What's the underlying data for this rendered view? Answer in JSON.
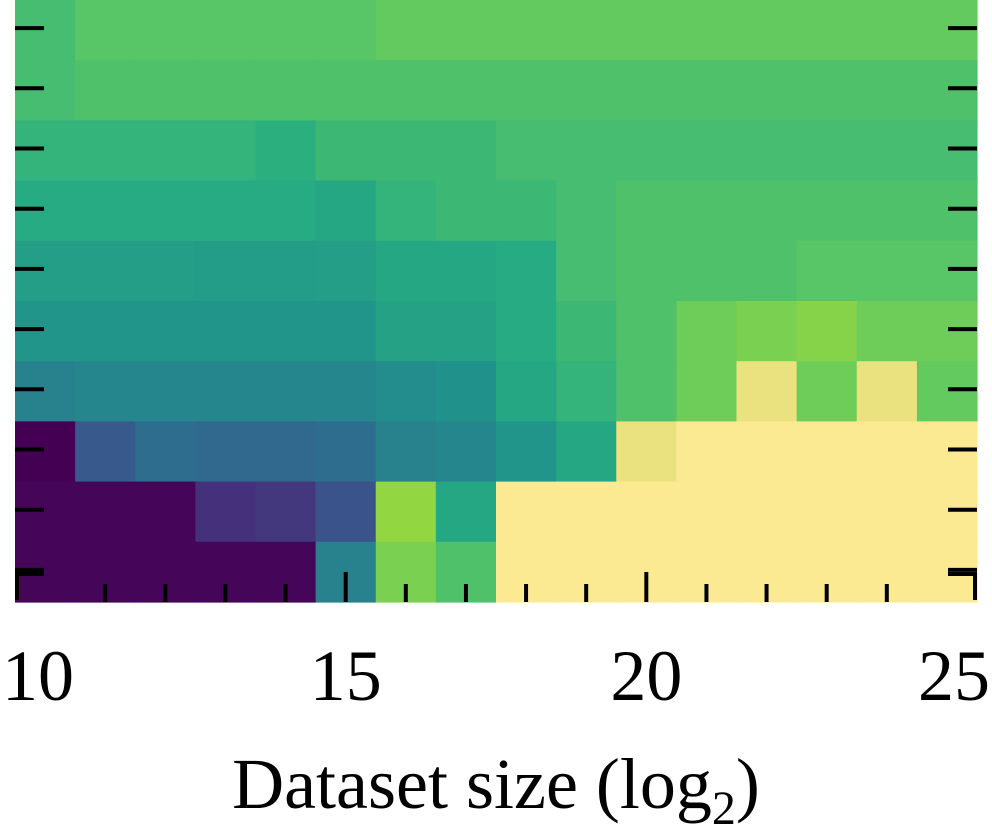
{
  "chart_data": {
    "type": "heatmap",
    "title": "",
    "xlabel_main": "Dataset size (log",
    "xlabel_sub": "2",
    "xlabel_close": ")",
    "ylabel": "",
    "x": [
      10,
      11,
      12,
      13,
      14,
      15,
      16,
      17,
      18,
      19,
      20,
      21,
      22,
      23,
      24,
      25
    ],
    "xlim": [
      9.5,
      25.5
    ],
    "rows": 10,
    "xticks": [
      10,
      15,
      20,
      25
    ],
    "xtick_labels": [
      "10",
      "15",
      "20",
      "25"
    ],
    "colormap": "viridis",
    "values_top_to_bottom": [
      [
        0.7,
        0.74,
        0.74,
        0.74,
        0.74,
        0.74,
        0.76,
        0.76,
        0.76,
        0.76,
        0.76,
        0.76,
        0.76,
        0.76,
        0.76,
        0.76
      ],
      [
        0.7,
        0.72,
        0.72,
        0.72,
        0.72,
        0.72,
        0.72,
        0.72,
        0.72,
        0.72,
        0.72,
        0.72,
        0.72,
        0.72,
        0.72,
        0.72
      ],
      [
        0.66,
        0.66,
        0.66,
        0.66,
        0.64,
        0.68,
        0.68,
        0.68,
        0.7,
        0.7,
        0.7,
        0.7,
        0.7,
        0.7,
        0.7,
        0.7
      ],
      [
        0.62,
        0.62,
        0.62,
        0.62,
        0.62,
        0.6,
        0.66,
        0.68,
        0.68,
        0.7,
        0.72,
        0.72,
        0.72,
        0.72,
        0.72,
        0.72
      ],
      [
        0.56,
        0.56,
        0.56,
        0.55,
        0.55,
        0.56,
        0.6,
        0.6,
        0.62,
        0.7,
        0.72,
        0.72,
        0.72,
        0.74,
        0.74,
        0.74
      ],
      [
        0.52,
        0.52,
        0.52,
        0.52,
        0.52,
        0.52,
        0.58,
        0.58,
        0.62,
        0.68,
        0.72,
        0.78,
        0.8,
        0.82,
        0.78,
        0.78
      ],
      [
        0.44,
        0.46,
        0.46,
        0.46,
        0.46,
        0.46,
        0.48,
        0.5,
        0.6,
        0.66,
        0.72,
        0.78,
        0.88,
        0.78,
        0.88,
        0.76
      ],
      [
        0.0,
        0.28,
        0.36,
        0.34,
        0.34,
        0.36,
        0.44,
        0.46,
        0.52,
        0.6,
        0.9,
        0.96,
        0.96,
        0.96,
        0.96,
        0.96
      ],
      [
        0.02,
        0.02,
        0.02,
        0.16,
        0.18,
        0.26,
        0.84,
        0.6,
        0.96,
        0.96,
        1.0,
        1.0,
        1.0,
        1.0,
        1.0,
        1.0
      ],
      [
        0.02,
        0.02,
        0.02,
        0.02,
        0.02,
        0.44,
        0.8,
        0.72,
        1.0,
        1.0,
        1.0,
        1.0,
        1.0,
        1.0,
        1.0,
        1.0
      ]
    ],
    "vlim": [
      0,
      1
    ],
    "grid": false,
    "legend": "none"
  }
}
